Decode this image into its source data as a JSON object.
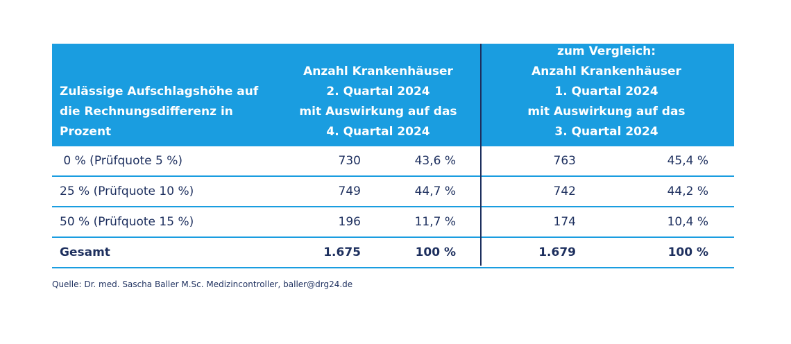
{
  "header": {
    "col1": [
      "Zulässige Aufschlagshöhe auf",
      "die Rechnungsdifferenz in",
      "Prozent"
    ],
    "col2": [
      "Anzahl Krankenhäuser",
      "2. Quartal 2024",
      "mit Auswirkung auf das",
      "4. Quartal 2024"
    ],
    "col3": [
      "zum Vergleich:",
      "Anzahl Krankenhäuser",
      "1. Quartal 2024",
      "mit Auswirkung auf das",
      "3. Quartal 2024"
    ]
  },
  "rows": [
    {
      "label": " 0 % (Prüfquote 5 %)",
      "n1": "730",
      "p1": "43,6 %",
      "n2": "763",
      "p2": "45,4 %"
    },
    {
      "label": "25 % (Prüfquote 10 %)",
      "n1": "749",
      "p1": "44,7 %",
      "n2": "742",
      "p2": "44,2 %"
    },
    {
      "label": "50 % (Prüfquote 15 %)",
      "n1": "196",
      "p1": "11,7 %",
      "n2": "174",
      "p2": "10,4 %"
    }
  ],
  "total": {
    "label": "Gesamt",
    "n1": "1.675",
    "p1": "100 %",
    "n2": "1.679",
    "p2": "100 %"
  },
  "source": "Quelle: Dr. med. Sascha Baller M.Sc. Medizincontroller, baller@drg24.de",
  "colors": {
    "header_bg": "#1a9de0",
    "text": "#1d2f5e",
    "rule": "#1a9de0"
  }
}
